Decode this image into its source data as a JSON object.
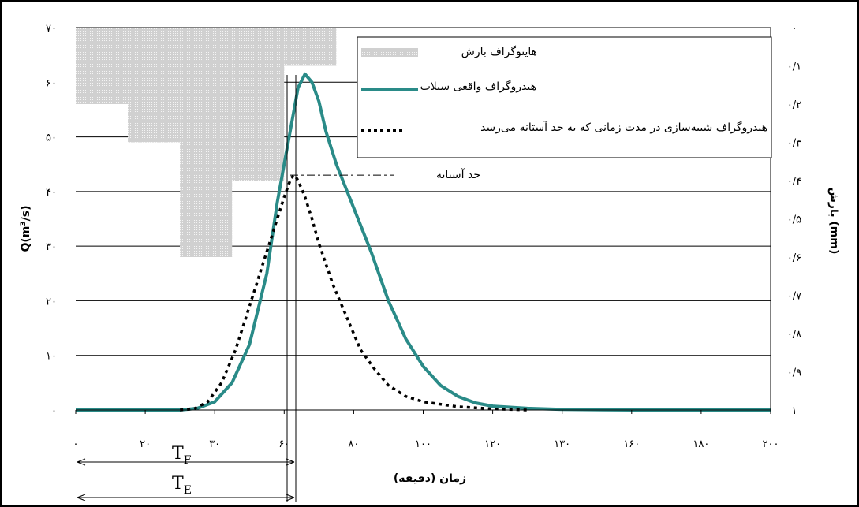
{
  "chart_data": {
    "type": "line",
    "xlabel": "زمان (دقیقه)",
    "ylabel_left": "Q(m³/s)",
    "ylabel_right": "بارش (mm)",
    "x_ticks": [
      "۰",
      "۲۰",
      "۳۰",
      "۶۰",
      "۸۰",
      "۱۰۰",
      "۱۲۰",
      "۱۳۰",
      "۱۶۰",
      "۱۸۰",
      "۲۰۰"
    ],
    "y_ticks_left": [
      "۰",
      "۱۰",
      "۲۰",
      "۳۰",
      "۴۰",
      "۵۰",
      "۶۰",
      "۷۰"
    ],
    "y_ticks_right": [
      "۰",
      "۰/۱",
      "۰/۲",
      "۰/۳",
      "۰/۴",
      "۰/۵",
      "۰/۶",
      "۰/۷",
      "۰/۸",
      "۰/۹",
      "۱"
    ],
    "xlim": [
      0,
      200
    ],
    "ylim_left": [
      0,
      70
    ],
    "ylim_right_inverted": [
      0,
      1
    ],
    "grid": "horizontal",
    "legend_position": "top-right",
    "series": [
      {
        "name": "هیدروگراف واقعی سیلاب",
        "style": "solid",
        "color": "#2a8b88",
        "x": [
          0,
          25,
          30,
          35,
          40,
          45,
          50,
          55,
          58,
          62,
          64,
          66,
          68,
          70,
          72,
          75,
          80,
          85,
          90,
          95,
          100,
          105,
          110,
          115,
          120,
          130,
          140,
          160,
          180,
          200
        ],
        "y": [
          0,
          0,
          0,
          0.3,
          1.5,
          5,
          12,
          25,
          38,
          52,
          59,
          61.5,
          60,
          56.5,
          51,
          45,
          37,
          29,
          20,
          13,
          8,
          4.5,
          2.5,
          1.3,
          0.7,
          0.3,
          0.1,
          0,
          0,
          0
        ]
      },
      {
        "name": "هیدروگراف شبیه‌سازی در مدت زمانی که به حد آستانه می‌رسد",
        "style": "dotted",
        "color": "#000000",
        "x": [
          30,
          34,
          38,
          42,
          46,
          50,
          54,
          58,
          60,
          62,
          63,
          64,
          66,
          68,
          70,
          74,
          78,
          82,
          86,
          90,
          95,
          100,
          110,
          120,
          130
        ],
        "y": [
          0,
          0.2,
          1.5,
          5,
          11,
          19,
          27,
          35,
          39,
          42.5,
          43,
          42,
          39,
          35,
          30.5,
          23,
          17,
          11,
          7.5,
          4.5,
          2.5,
          1.5,
          0.6,
          0.2,
          0
        ]
      }
    ],
    "bars": {
      "name": "هایتوگراف بارش",
      "color": "#c8c8c8",
      "unit": "mm",
      "items": [
        {
          "x0": 0,
          "x1": 15,
          "value": 0.2
        },
        {
          "x0": 15,
          "x1": 30,
          "value": 0.3
        },
        {
          "x0": 30,
          "x1": 45,
          "value": 0.6
        },
        {
          "x0": 45,
          "x1": 60,
          "value": 0.4
        },
        {
          "x0": 60,
          "x1": 75,
          "value": 0.1
        }
      ]
    },
    "threshold": {
      "label": "حد آستانه",
      "value": 43
    },
    "annotations": {
      "tf_label": "T",
      "tf_sub": "F",
      "te_label": "T",
      "te_sub": "E"
    }
  },
  "legend": {
    "rain": "هایتوگراف بارش",
    "observed": "هیدروگراف واقعی سیلاب",
    "simulated": "هیدروگراف شبیه‌سازی در مدت زمانی که به حد آستانه می‌رسد"
  },
  "colors": {
    "observed": "#2a8b88",
    "rain": "#c8c8c8"
  }
}
